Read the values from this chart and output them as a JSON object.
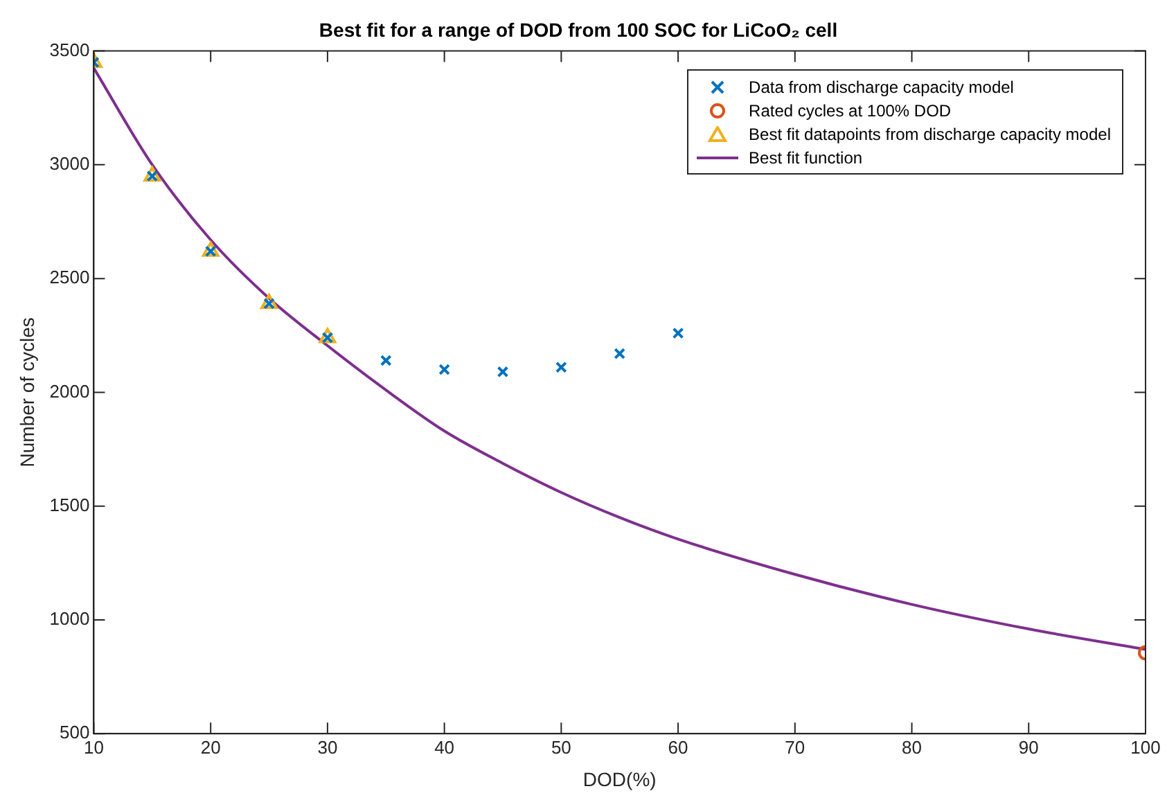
{
  "chart_data": {
    "type": "scatter",
    "title": "Best fit for a range of DOD from 100 SOC for LiCoO₂ cell",
    "xlabel": "DOD(%)",
    "ylabel": "Number of cycles",
    "xlim": [
      10,
      100
    ],
    "xticks": [
      10,
      20,
      30,
      40,
      50,
      60,
      70,
      80,
      90,
      100
    ],
    "ylim": [
      500,
      3500
    ],
    "yticks": [
      500,
      1000,
      1500,
      2000,
      2500,
      3000,
      3500
    ],
    "grid": false,
    "legend": "top right",
    "series": [
      {
        "name": "Data from discharge capacity model",
        "marker": "cross",
        "color": "#0072bd",
        "x": [
          10,
          15,
          20,
          25,
          30,
          35,
          40,
          45,
          50,
          55,
          60
        ],
        "values": [
          3450,
          2950,
          2620,
          2390,
          2240,
          2140,
          2100,
          2090,
          2110,
          2170,
          2260
        ]
      },
      {
        "name": "Rated cycles at 100% DOD",
        "marker": "circle",
        "color": "#d95319",
        "x": [
          100
        ],
        "values": [
          855
        ]
      },
      {
        "name": "Best fit datapoints from discharge capacity model",
        "marker": "triangle",
        "color": "#edb120",
        "x": [
          10,
          15,
          20,
          25,
          30
        ],
        "values": [
          3450,
          2950,
          2620,
          2390,
          2240
        ]
      },
      {
        "name": "Best fit function",
        "type": "line",
        "marker": "none",
        "color": "#7e2f8e",
        "x": [
          10,
          15,
          20,
          25,
          30,
          35,
          40,
          45,
          50,
          55,
          60,
          70,
          80,
          90,
          100
        ],
        "values": [
          3425,
          3000,
          2670,
          2413,
          2205,
          2010,
          1830,
          1688,
          1560,
          1450,
          1355,
          1200,
          1068,
          960,
          870
        ]
      }
    ]
  }
}
